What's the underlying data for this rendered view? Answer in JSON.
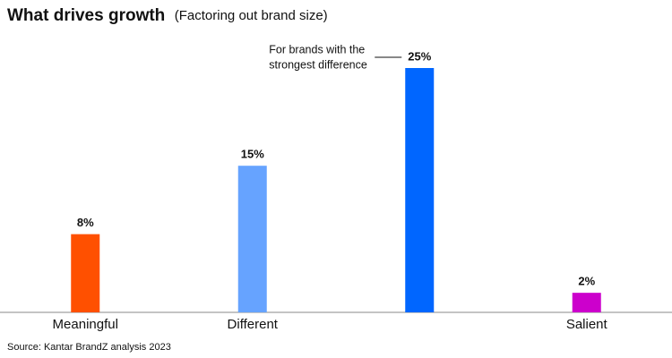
{
  "chart_data": {
    "type": "bar",
    "title": "What drives growth",
    "subtitle": "(Factoring out brand size)",
    "categories": [
      "Meaningful",
      "Different",
      null,
      "Salient"
    ],
    "values": [
      8,
      15,
      25,
      2
    ],
    "value_labels": [
      "8%",
      "15%",
      "25%",
      "2%"
    ],
    "colors": [
      "#ff5000",
      "#66a3ff",
      "#0066ff",
      "#cc00cc"
    ],
    "annotation": [
      "For brands with the",
      "strongest difference"
    ],
    "source": "Source: Kantar BrandZ analysis 2023"
  }
}
